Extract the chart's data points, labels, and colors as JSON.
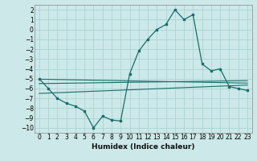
{
  "xlabel": "Humidex (Indice chaleur)",
  "bg_color": "#cce8e8",
  "line_color": "#1a6e6a",
  "grid_color": "#aad4d4",
  "xlim": [
    -0.5,
    23.5
  ],
  "ylim": [
    -10.5,
    2.5
  ],
  "xticks": [
    0,
    1,
    2,
    3,
    4,
    5,
    6,
    7,
    8,
    9,
    10,
    11,
    12,
    13,
    14,
    15,
    16,
    17,
    18,
    19,
    20,
    21,
    22,
    23
  ],
  "yticks": [
    2,
    1,
    0,
    -1,
    -2,
    -3,
    -4,
    -5,
    -6,
    -7,
    -8,
    -9,
    -10
  ],
  "main_x": [
    0,
    1,
    2,
    3,
    4,
    5,
    6,
    7,
    8,
    9,
    10,
    11,
    12,
    13,
    14,
    15,
    16,
    17,
    18,
    19,
    20,
    21,
    22,
    23
  ],
  "main_y": [
    -5.0,
    -6.0,
    -7.0,
    -7.5,
    -7.8,
    -8.3,
    -10.0,
    -8.8,
    -9.2,
    -9.3,
    -4.5,
    -2.2,
    -1.0,
    0.0,
    0.5,
    2.0,
    1.0,
    1.5,
    -3.5,
    -4.2,
    -4.0,
    -5.8,
    -6.0,
    -6.2
  ],
  "line1_x": [
    0,
    23
  ],
  "line1_y": [
    -5.05,
    -5.45
  ],
  "line2_x": [
    0,
    23
  ],
  "line2_y": [
    -5.5,
    -5.2
  ],
  "line3_x": [
    0,
    23
  ],
  "line3_y": [
    -6.5,
    -5.65
  ]
}
